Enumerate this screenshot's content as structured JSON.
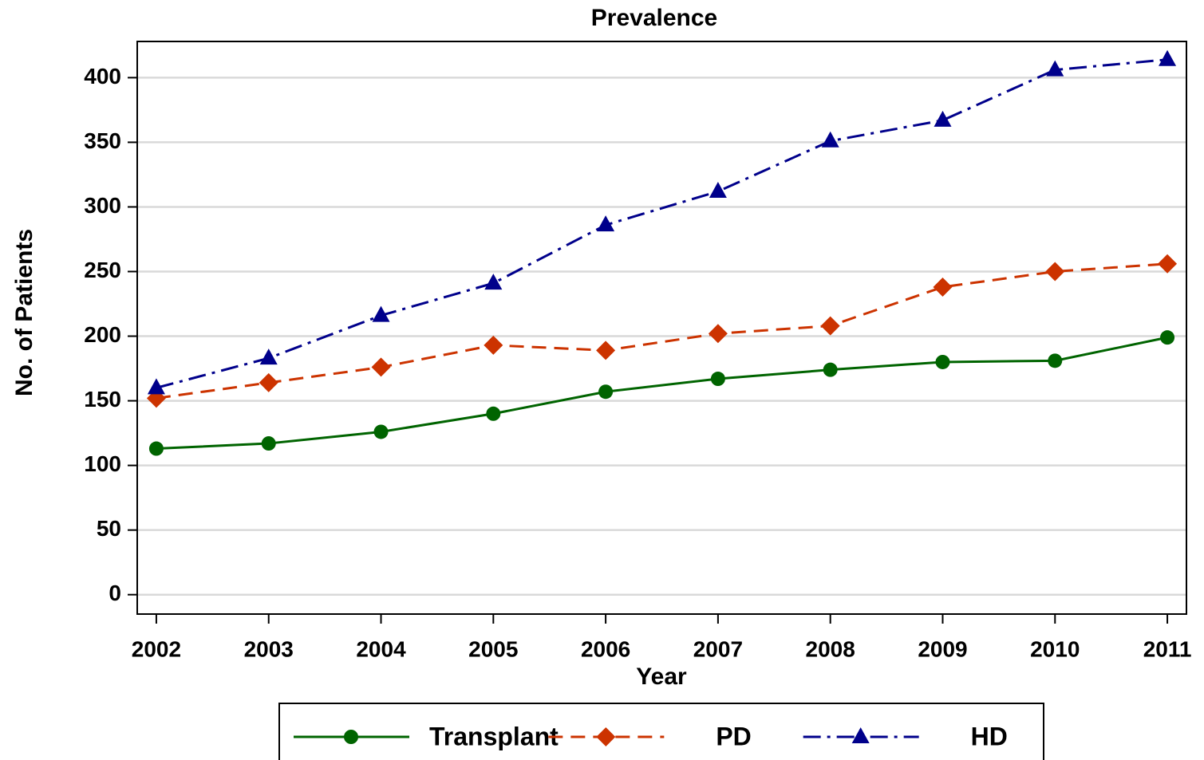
{
  "chart_data": {
    "type": "line",
    "title": "Prevalence",
    "xlabel": "Year",
    "ylabel": "No. of Patients",
    "x": [
      2002,
      2003,
      2004,
      2005,
      2006,
      2007,
      2008,
      2009,
      2010,
      2011
    ],
    "xlim": [
      2001.83,
      2011.17
    ],
    "xticks": [
      2002,
      2003,
      2004,
      2005,
      2006,
      2007,
      2008,
      2009,
      2010,
      2011
    ],
    "ylim": [
      -15,
      428
    ],
    "yticks": [
      0,
      50,
      100,
      150,
      200,
      250,
      300,
      350,
      400
    ],
    "grid": true,
    "legend": "bottom",
    "series": [
      {
        "name": "Transplant",
        "color": "#006400",
        "linestyle": "solid",
        "marker": "circle",
        "values": [
          113,
          117,
          126,
          140,
          157,
          167,
          174,
          180,
          181,
          199
        ]
      },
      {
        "name": "PD",
        "color": "#cc3300",
        "linestyle": "dashed",
        "marker": "diamond",
        "values": [
          152,
          164,
          176,
          193,
          189,
          202,
          208,
          238,
          250,
          256
        ]
      },
      {
        "name": "HD",
        "color": "#00008b",
        "linestyle": "dashdot",
        "marker": "triangle",
        "values": [
          160,
          183,
          216,
          241,
          286,
          312,
          351,
          367,
          406,
          414
        ]
      }
    ]
  }
}
